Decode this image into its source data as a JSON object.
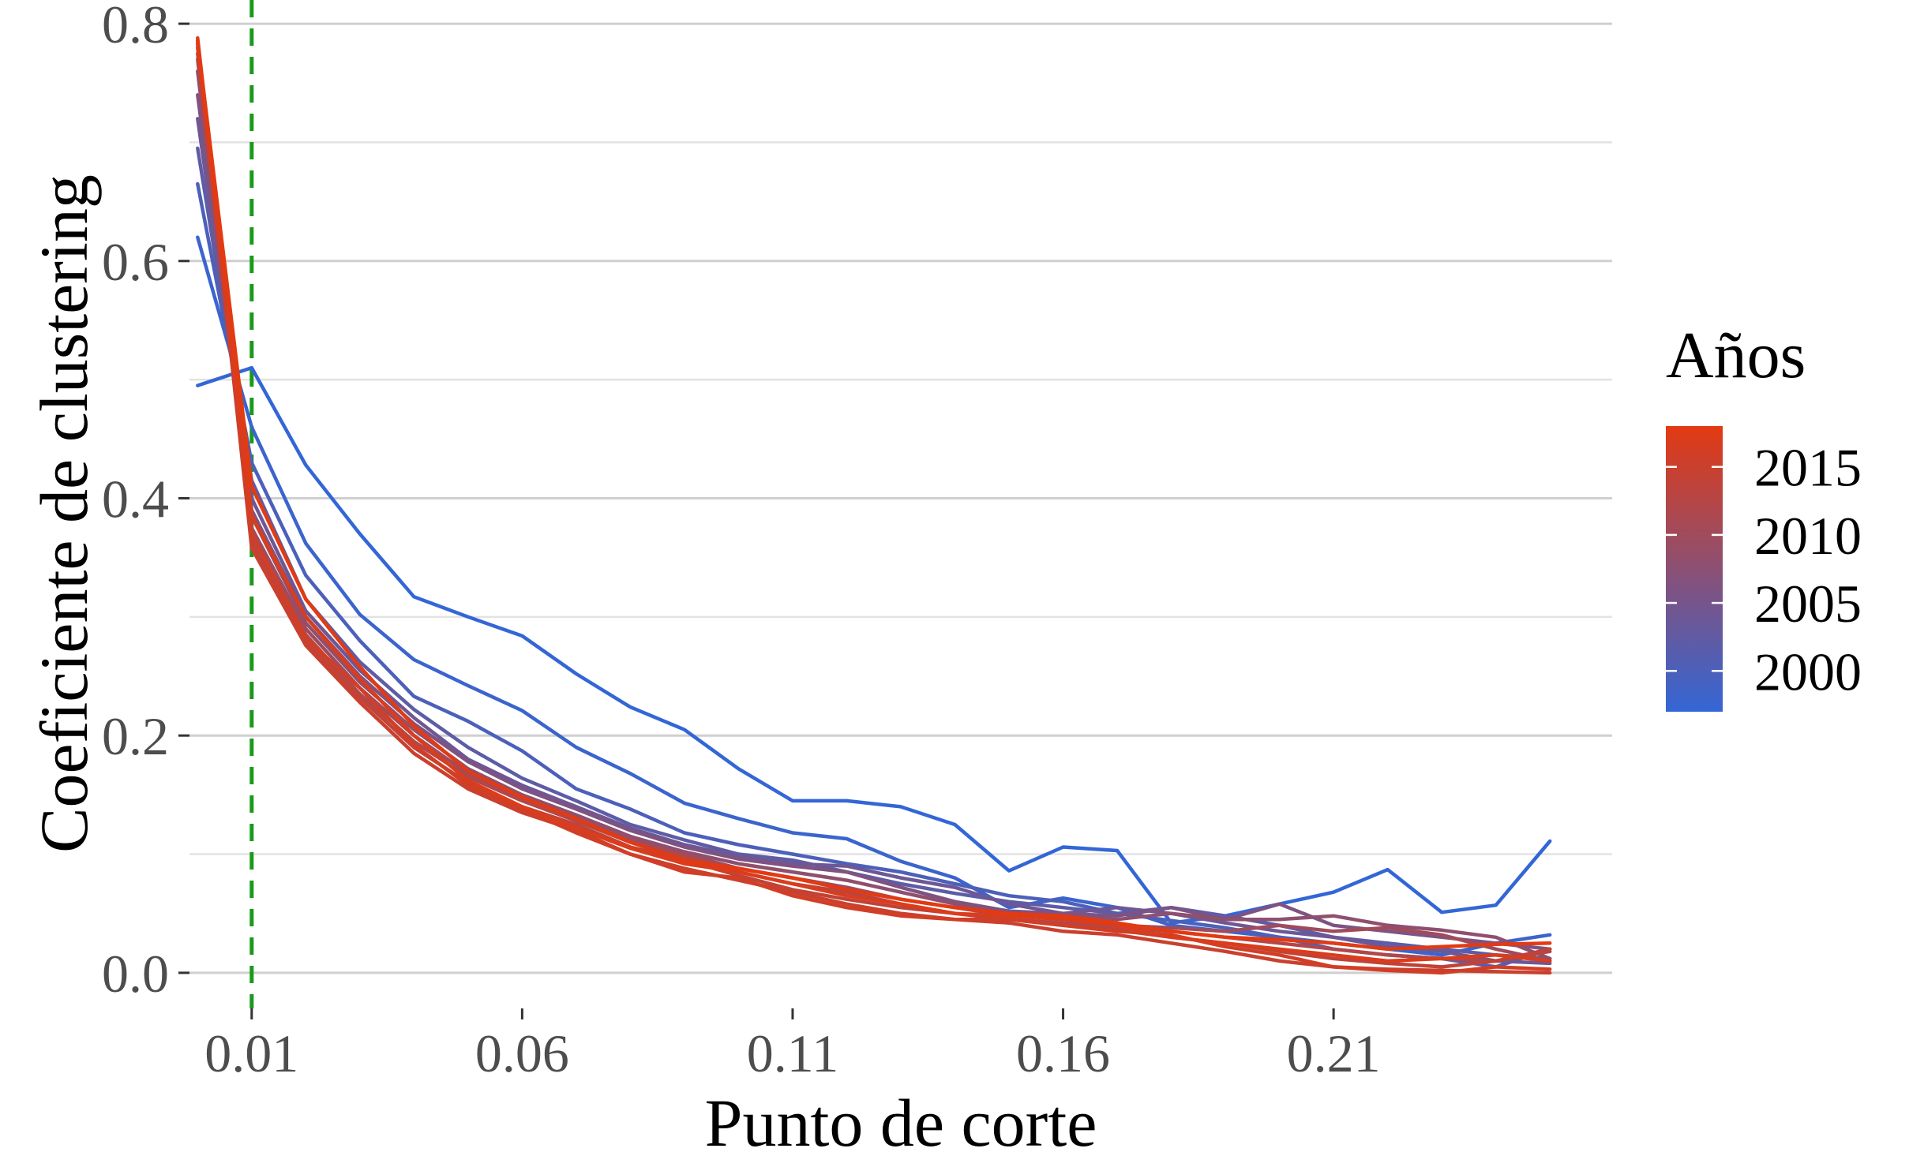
{
  "chart_data": {
    "type": "line",
    "xlabel": "Punto de corte",
    "ylabel": "Coeficiente de clustering",
    "xlim": [
      -0.0015,
      0.2615
    ],
    "ylim": [
      -0.03,
      0.82
    ],
    "x_ticks": [
      0.01,
      0.06,
      0.11,
      0.16,
      0.21
    ],
    "x_tick_labels": [
      "0.01",
      "0.06",
      "0.11",
      "0.16",
      "0.21"
    ],
    "y_ticks": [
      0.0,
      0.2,
      0.4,
      0.6,
      0.8
    ],
    "y_tick_labels": [
      "0.0",
      "0.2",
      "0.4",
      "0.6",
      "0.8"
    ],
    "y_minor_gridlines": [
      0.1,
      0.3,
      0.5,
      0.7
    ],
    "grid": true,
    "reference_line": {
      "x": 0.01,
      "color": "#1a9a1a",
      "style": "dashed"
    },
    "legend": {
      "title": "Años",
      "placement": "right",
      "type": "colorbar",
      "labels": [
        "2015",
        "2010",
        "2005",
        "2000"
      ],
      "values": [
        2015,
        2010,
        2005,
        2000
      ],
      "range": [
        1997,
        2018
      ],
      "color_low": "#3366d6",
      "color_high": "#e33a12"
    },
    "x": [
      0.0,
      0.01,
      0.02,
      0.03,
      0.04,
      0.05,
      0.06,
      0.07,
      0.08,
      0.09,
      0.1,
      0.11,
      0.12,
      0.13,
      0.14,
      0.15,
      0.16,
      0.17,
      0.18,
      0.19,
      0.2,
      0.21,
      0.22,
      0.23,
      0.24,
      0.25
    ],
    "series": [
      {
        "year": 1997,
        "values": [
          0.495,
          0.51,
          0.428,
          0.37,
          0.317,
          0.3,
          0.284,
          0.252,
          0.224,
          0.205,
          0.172,
          0.145,
          0.145,
          0.14,
          0.125,
          0.086,
          0.106,
          0.103,
          0.042,
          0.048,
          0.058,
          0.068,
          0.087,
          0.051,
          0.057,
          0.111
        ]
      },
      {
        "year": 1998,
        "values": [
          0.62,
          0.46,
          0.362,
          0.302,
          0.264,
          0.242,
          0.221,
          0.19,
          0.168,
          0.143,
          0.13,
          0.118,
          0.113,
          0.094,
          0.08,
          0.055,
          0.063,
          0.055,
          0.04,
          0.035,
          0.03,
          0.025,
          0.02,
          0.015,
          0.025,
          0.032
        ]
      },
      {
        "year": 2000,
        "values": [
          0.665,
          0.43,
          0.335,
          0.28,
          0.233,
          0.212,
          0.187,
          0.155,
          0.138,
          0.118,
          0.108,
          0.1,
          0.092,
          0.085,
          0.075,
          0.065,
          0.06,
          0.05,
          0.044,
          0.038,
          0.03,
          0.02,
          0.015,
          0.012,
          0.005,
          0.02
        ]
      },
      {
        "year": 2002,
        "values": [
          0.695,
          0.415,
          0.315,
          0.262,
          0.222,
          0.19,
          0.164,
          0.145,
          0.125,
          0.112,
          0.1,
          0.095,
          0.085,
          0.075,
          0.067,
          0.06,
          0.055,
          0.05,
          0.055,
          0.048,
          0.04,
          0.03,
          0.025,
          0.02,
          0.015,
          0.012
        ]
      },
      {
        "year": 2004,
        "values": [
          0.72,
          0.4,
          0.305,
          0.255,
          0.215,
          0.18,
          0.158,
          0.14,
          0.122,
          0.108,
          0.098,
          0.092,
          0.09,
          0.08,
          0.072,
          0.058,
          0.05,
          0.055,
          0.05,
          0.042,
          0.035,
          0.03,
          0.022,
          0.018,
          0.01,
          0.008
        ]
      },
      {
        "year": 2006,
        "values": [
          0.74,
          0.39,
          0.3,
          0.25,
          0.21,
          0.178,
          0.155,
          0.138,
          0.12,
          0.106,
          0.096,
          0.09,
          0.085,
          0.072,
          0.06,
          0.052,
          0.05,
          0.048,
          0.055,
          0.045,
          0.058,
          0.04,
          0.035,
          0.03,
          0.025,
          0.02
        ]
      },
      {
        "year": 2008,
        "values": [
          0.76,
          0.385,
          0.295,
          0.245,
          0.205,
          0.172,
          0.15,
          0.133,
          0.115,
          0.102,
          0.092,
          0.085,
          0.078,
          0.068,
          0.058,
          0.05,
          0.048,
          0.045,
          0.05,
          0.045,
          0.045,
          0.048,
          0.04,
          0.036,
          0.03,
          0.012
        ]
      },
      {
        "year": 2010,
        "values": [
          0.77,
          0.375,
          0.29,
          0.24,
          0.2,
          0.168,
          0.148,
          0.13,
          0.112,
          0.1,
          0.088,
          0.08,
          0.072,
          0.062,
          0.055,
          0.048,
          0.045,
          0.04,
          0.038,
          0.035,
          0.04,
          0.035,
          0.038,
          0.032,
          0.02,
          0.01
        ]
      },
      {
        "year": 2012,
        "values": [
          0.775,
          0.368,
          0.285,
          0.235,
          0.195,
          0.165,
          0.145,
          0.128,
          0.11,
          0.098,
          0.085,
          0.075,
          0.068,
          0.058,
          0.05,
          0.045,
          0.042,
          0.038,
          0.035,
          0.03,
          0.025,
          0.02,
          0.015,
          0.012,
          0.01,
          0.018
        ]
      },
      {
        "year": 2014,
        "values": [
          0.78,
          0.362,
          0.28,
          0.232,
          0.19,
          0.16,
          0.14,
          0.125,
          0.106,
          0.095,
          0.082,
          0.07,
          0.062,
          0.055,
          0.05,
          0.045,
          0.04,
          0.036,
          0.03,
          0.025,
          0.018,
          0.012,
          0.008,
          0.005,
          0.01,
          0.02
        ]
      },
      {
        "year": 2015,
        "values": [
          0.783,
          0.358,
          0.276,
          0.228,
          0.185,
          0.155,
          0.135,
          0.12,
          0.1,
          0.088,
          0.078,
          0.068,
          0.058,
          0.05,
          0.045,
          0.042,
          0.035,
          0.032,
          0.025,
          0.018,
          0.01,
          0.005,
          0.003,
          0.002,
          0.001,
          0.0
        ]
      },
      {
        "year": 2016,
        "values": [
          0.786,
          0.37,
          0.282,
          0.24,
          0.192,
          0.158,
          0.138,
          0.118,
          0.1,
          0.085,
          0.08,
          0.065,
          0.055,
          0.048,
          0.045,
          0.045,
          0.04,
          0.035,
          0.032,
          0.022,
          0.015,
          0.005,
          0.002,
          0.0,
          0.005,
          0.003
        ]
      },
      {
        "year": 2017,
        "values": [
          0.788,
          0.385,
          0.3,
          0.248,
          0.2,
          0.162,
          0.14,
          0.122,
          0.105,
          0.092,
          0.085,
          0.075,
          0.065,
          0.058,
          0.05,
          0.048,
          0.045,
          0.04,
          0.03,
          0.025,
          0.02,
          0.015,
          0.01,
          0.012,
          0.015,
          0.01
        ]
      },
      {
        "year": 2018,
        "values": [
          0.785,
          0.41,
          0.315,
          0.258,
          0.208,
          0.17,
          0.148,
          0.13,
          0.11,
          0.095,
          0.088,
          0.08,
          0.07,
          0.062,
          0.055,
          0.05,
          0.048,
          0.042,
          0.035,
          0.03,
          0.028,
          0.025,
          0.02,
          0.022,
          0.024,
          0.025
        ]
      }
    ]
  }
}
